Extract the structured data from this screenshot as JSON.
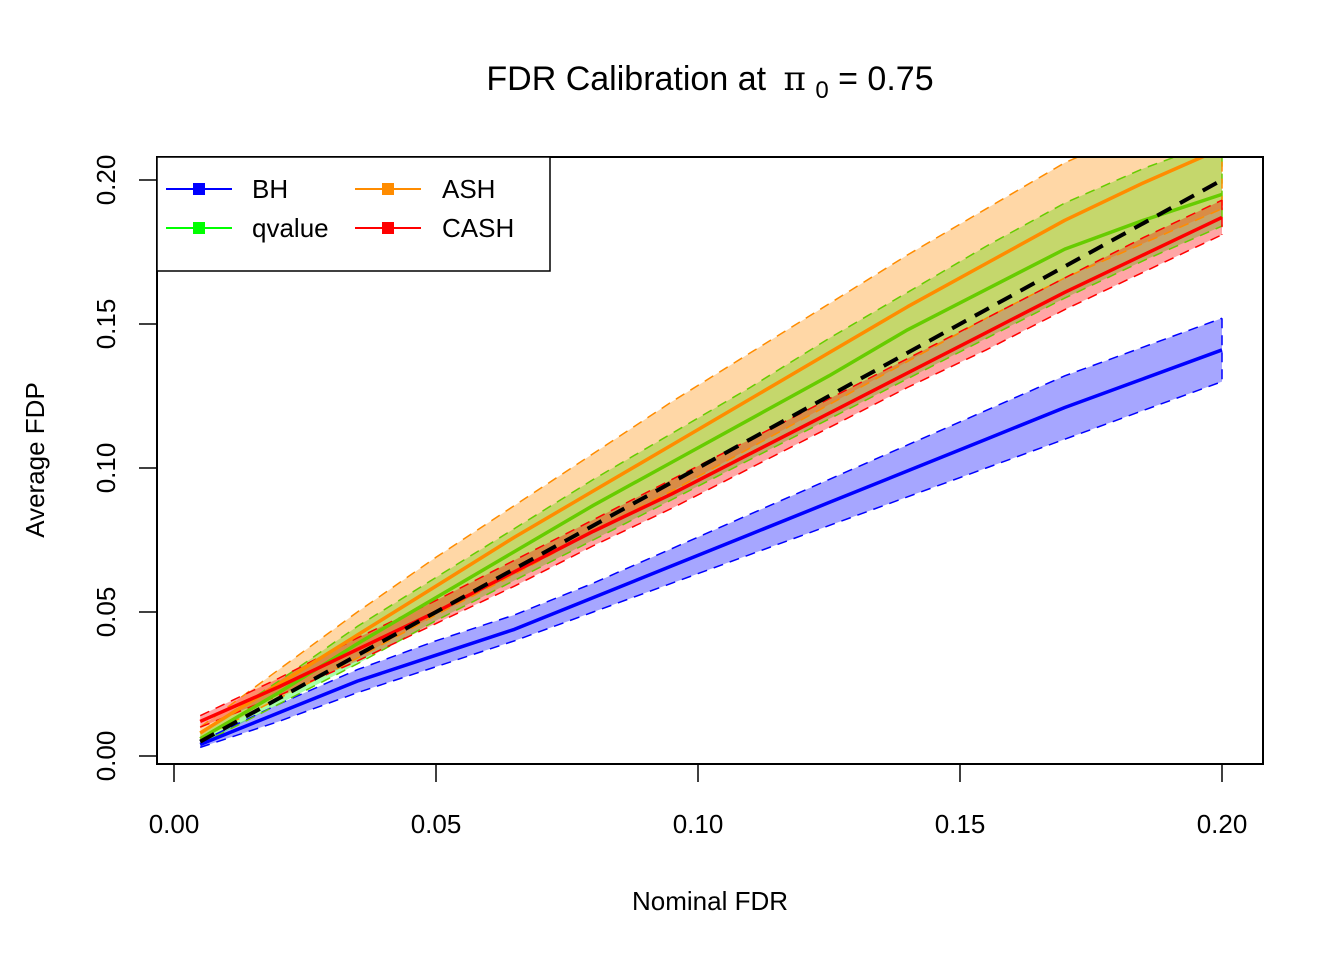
{
  "chart_data": {
    "type": "line",
    "title": "FDR Calibration at",
    "title_math": {
      "symbol": "π",
      "subscript": "0",
      "rest": " = 0.75"
    },
    "xlabel": "Nominal FDR",
    "ylabel": "Average FDP",
    "xlim": [
      -0.003,
      0.208
    ],
    "ylim": [
      -0.003,
      0.208
    ],
    "xticks": [
      0.0,
      0.05,
      0.1,
      0.15,
      0.2
    ],
    "yticks": [
      0.0,
      0.05,
      0.1,
      0.15,
      0.2
    ],
    "xtick_labels": [
      "0.00",
      "0.05",
      "0.10",
      "0.15",
      "0.20"
    ],
    "ytick_labels": [
      "0.00",
      "0.05",
      "0.10",
      "0.15",
      "0.20"
    ],
    "grid": false,
    "legend_position": "top-left",
    "x": [
      0.005,
      0.02,
      0.035,
      0.05,
      0.065,
      0.08,
      0.095,
      0.11,
      0.125,
      0.14,
      0.155,
      0.17,
      0.185,
      0.2
    ],
    "reference_line": {
      "name": "y = x",
      "color": "#000000",
      "style": "dashed",
      "values": [
        0.005,
        0.02,
        0.035,
        0.05,
        0.065,
        0.08,
        0.095,
        0.11,
        0.125,
        0.14,
        0.155,
        0.17,
        0.185,
        0.2
      ]
    },
    "series": [
      {
        "name": "BH",
        "color": "#0000ff",
        "band_color": "#0000ff",
        "values": [
          0.004,
          0.015,
          0.026,
          0.035,
          0.044,
          0.055,
          0.066,
          0.077,
          0.088,
          0.099,
          0.11,
          0.121,
          0.131,
          0.141
        ],
        "lower": [
          0.003,
          0.012,
          0.022,
          0.031,
          0.04,
          0.05,
          0.06,
          0.07,
          0.08,
          0.09,
          0.1,
          0.11,
          0.12,
          0.13
        ],
        "upper": [
          0.005,
          0.018,
          0.03,
          0.04,
          0.049,
          0.06,
          0.072,
          0.084,
          0.096,
          0.108,
          0.12,
          0.132,
          0.142,
          0.152
        ]
      },
      {
        "name": "qvalue",
        "color": "#00ff00",
        "line_color": "#66cc00",
        "band_color": "#00ff00",
        "values": [
          0.006,
          0.022,
          0.039,
          0.055,
          0.071,
          0.087,
          0.102,
          0.117,
          0.132,
          0.148,
          0.162,
          0.176,
          0.186,
          0.195
        ],
        "lower": [
          0.004,
          0.018,
          0.032,
          0.047,
          0.061,
          0.075,
          0.089,
          0.103,
          0.117,
          0.131,
          0.145,
          0.159,
          0.172,
          0.184
        ],
        "upper": [
          0.008,
          0.026,
          0.045,
          0.062,
          0.079,
          0.096,
          0.112,
          0.128,
          0.145,
          0.161,
          0.177,
          0.192,
          0.204,
          0.214
        ]
      },
      {
        "name": "ASH",
        "color": "#ff8c00",
        "band_color": "#ff8c00",
        "values": [
          0.008,
          0.025,
          0.042,
          0.059,
          0.076,
          0.092,
          0.108,
          0.124,
          0.14,
          0.156,
          0.171,
          0.186,
          0.199,
          0.211
        ],
        "lower": [
          0.006,
          0.02,
          0.034,
          0.049,
          0.063,
          0.078,
          0.092,
          0.107,
          0.122,
          0.137,
          0.152,
          0.166,
          0.178,
          0.19
        ],
        "upper": [
          0.01,
          0.03,
          0.05,
          0.069,
          0.087,
          0.105,
          0.123,
          0.14,
          0.157,
          0.174,
          0.19,
          0.206,
          0.218,
          0.23
        ]
      },
      {
        "name": "CASH",
        "color": "#ff0000",
        "band_color": "#ff0000",
        "values": [
          0.012,
          0.024,
          0.037,
          0.05,
          0.064,
          0.078,
          0.091,
          0.105,
          0.119,
          0.133,
          0.147,
          0.161,
          0.174,
          0.187
        ],
        "lower": [
          0.01,
          0.021,
          0.033,
          0.046,
          0.059,
          0.073,
          0.086,
          0.1,
          0.114,
          0.128,
          0.141,
          0.155,
          0.168,
          0.181
        ],
        "upper": [
          0.014,
          0.027,
          0.041,
          0.054,
          0.068,
          0.082,
          0.096,
          0.11,
          0.124,
          0.138,
          0.152,
          0.166,
          0.18,
          0.193
        ]
      }
    ],
    "legend": [
      {
        "label": "BH",
        "color": "#0000ff"
      },
      {
        "label": "qvalue",
        "color": "#00ff00"
      },
      {
        "label": "ASH",
        "color": "#ff8c00"
      },
      {
        "label": "CASH",
        "color": "#ff0000"
      }
    ]
  }
}
